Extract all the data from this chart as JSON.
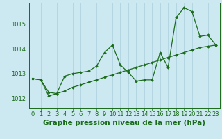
{
  "title": "Graphe pression niveau de la mer (hPa)",
  "background_color": "#cce8f0",
  "grid_color": "#aacfdc",
  "line_color": "#1a6b1a",
  "marker_color": "#1a6b1a",
  "xlim": [
    -0.5,
    23.5
  ],
  "ylim": [
    1011.6,
    1015.85
  ],
  "yticks": [
    1012,
    1013,
    1014,
    1015
  ],
  "xticks": [
    0,
    1,
    2,
    3,
    4,
    5,
    6,
    7,
    8,
    9,
    10,
    11,
    12,
    13,
    14,
    15,
    16,
    17,
    18,
    19,
    20,
    21,
    22,
    23
  ],
  "series1_x": [
    0,
    1,
    2,
    3,
    4,
    5,
    6,
    7,
    8,
    9,
    10,
    11,
    12,
    13,
    14,
    15,
    16,
    17,
    18,
    19,
    20,
    21,
    22,
    23
  ],
  "series1_y": [
    1012.8,
    1012.75,
    1012.1,
    1012.2,
    1012.9,
    1013.0,
    1013.05,
    1013.1,
    1013.3,
    1013.85,
    1014.15,
    1013.35,
    1013.05,
    1012.7,
    1012.75,
    1012.75,
    1013.85,
    1013.25,
    1015.25,
    1015.65,
    1015.5,
    1014.5,
    1014.55,
    1014.15
  ],
  "series2_x": [
    0,
    1,
    2,
    3,
    4,
    5,
    6,
    7,
    8,
    9,
    10,
    11,
    12,
    13,
    14,
    15,
    16,
    17,
    18,
    19,
    20,
    21,
    22,
    23
  ],
  "series2_y": [
    1012.8,
    1012.75,
    1012.25,
    1012.2,
    1012.3,
    1012.45,
    1012.55,
    1012.65,
    1012.75,
    1012.85,
    1012.95,
    1013.05,
    1013.15,
    1013.25,
    1013.35,
    1013.45,
    1013.55,
    1013.65,
    1013.75,
    1013.85,
    1013.95,
    1014.05,
    1014.1,
    1014.15
  ],
  "title_fontsize": 7.5,
  "tick_fontsize": 6.0
}
